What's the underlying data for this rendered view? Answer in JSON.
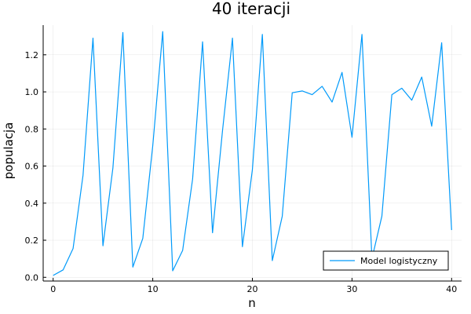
{
  "chart_data": {
    "type": "line",
    "title": "40 iteracji",
    "xlabel": "n",
    "ylabel": "populacja",
    "xlim": [
      -1,
      41
    ],
    "ylim": [
      -0.02,
      1.36
    ],
    "xticks": [
      0,
      10,
      20,
      30,
      40
    ],
    "xtick_labels": [
      "0",
      "10",
      "20",
      "30",
      "40"
    ],
    "yticks": [
      0.0,
      0.2,
      0.4,
      0.6,
      0.8,
      1.0,
      1.2
    ],
    "ytick_labels": [
      "0.0",
      "0.2",
      "0.4",
      "0.6",
      "0.8",
      "1.0",
      "1.2"
    ],
    "grid": true,
    "legend_position": "bottom-right",
    "series": [
      {
        "name": "Model logistyczny",
        "color": "#009AFA",
        "x": [
          0,
          1,
          2,
          3,
          4,
          5,
          6,
          7,
          8,
          9,
          10,
          11,
          12,
          13,
          14,
          15,
          16,
          17,
          18,
          19,
          20,
          21,
          22,
          23,
          24,
          25,
          26,
          27,
          28,
          29,
          30,
          31,
          32,
          33,
          34,
          35,
          36,
          37,
          38,
          39,
          40
        ],
        "y": [
          0.01,
          0.04,
          0.155,
          0.55,
          1.29,
          0.17,
          0.59,
          1.32,
          0.055,
          0.21,
          0.71,
          1.325,
          0.035,
          0.145,
          0.53,
          1.27,
          0.24,
          0.79,
          1.29,
          0.165,
          0.58,
          1.31,
          0.09,
          0.33,
          0.995,
          1.005,
          0.985,
          1.03,
          0.945,
          1.105,
          0.755,
          1.31,
          0.1,
          0.33,
          0.985,
          1.02,
          0.955,
          1.08,
          0.815,
          1.265,
          0.255
        ]
      }
    ]
  }
}
